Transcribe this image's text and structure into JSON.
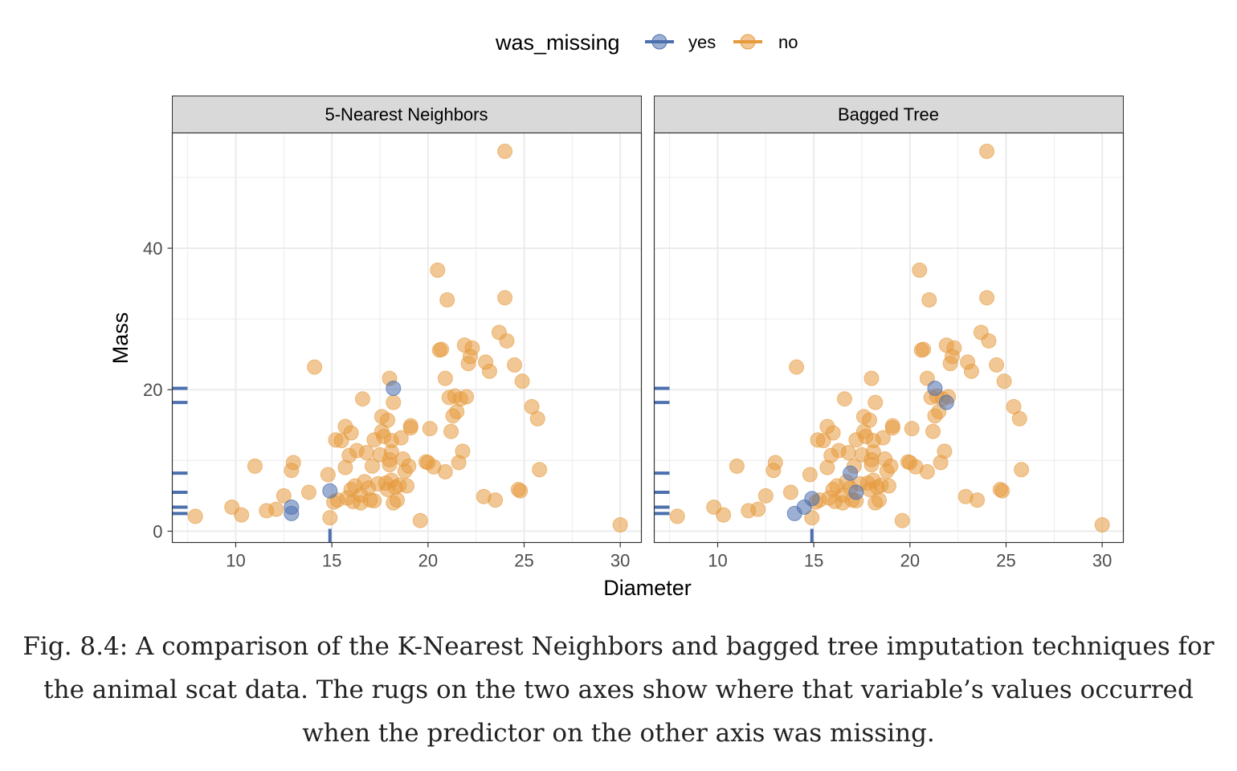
{
  "legend": {
    "title": "was_missing",
    "items": [
      {
        "label": "yes",
        "color": "#4c6fae"
      },
      {
        "label": "no",
        "color": "#e69a3e"
      }
    ],
    "placement": "top"
  },
  "caption": "Fig. 8.4: A comparison of the K-Nearest Neighbors and bagged tree imputation techniques for the animal scat data. The rugs on the two axes show where that variable’s values occurred when the predictor on the other axis was missing.",
  "chart_data": {
    "type": "scatter",
    "xlabel": "Diameter",
    "ylabel": "Mass",
    "xlim": [
      6.7,
      31.1
    ],
    "ylim": [
      -1.6,
      56.3
    ],
    "xticks": [
      10,
      15,
      20,
      25,
      30
    ],
    "yticks": [
      0,
      20,
      40
    ],
    "grid": true,
    "legend_placement": "top",
    "colors": {
      "yes": "#4c6fae",
      "no": "#e69a3e"
    },
    "rug": {
      "y_values": [
        20.2,
        18.2,
        8.2,
        5.5,
        3.4,
        2.5
      ],
      "x_values": [
        14.9
      ]
    },
    "no_points": [
      [
        7.9,
        2.1
      ],
      [
        9.8,
        3.4
      ],
      [
        10.3,
        2.3
      ],
      [
        11.0,
        9.2
      ],
      [
        11.6,
        2.9
      ],
      [
        12.1,
        3.1
      ],
      [
        12.5,
        5.0
      ],
      [
        12.9,
        8.6
      ],
      [
        13.0,
        9.7
      ],
      [
        13.8,
        5.5
      ],
      [
        14.1,
        23.2
      ],
      [
        14.8,
        8.0
      ],
      [
        14.9,
        1.9
      ],
      [
        15.1,
        4.1
      ],
      [
        15.2,
        12.9
      ],
      [
        15.3,
        4.4
      ],
      [
        15.5,
        12.8
      ],
      [
        15.7,
        14.8
      ],
      [
        15.7,
        9.0
      ],
      [
        15.8,
        4.7
      ],
      [
        15.9,
        10.7
      ],
      [
        16.0,
        13.9
      ],
      [
        16.0,
        5.9
      ],
      [
        16.1,
        4.2
      ],
      [
        16.2,
        6.4
      ],
      [
        16.3,
        11.4
      ],
      [
        16.5,
        4.0
      ],
      [
        16.5,
        5.1
      ],
      [
        16.6,
        18.7
      ],
      [
        16.7,
        7.0
      ],
      [
        16.8,
        11.1
      ],
      [
        16.9,
        6.1
      ],
      [
        17.0,
        4.4
      ],
      [
        17.1,
        9.2
      ],
      [
        17.2,
        4.3
      ],
      [
        17.2,
        12.9
      ],
      [
        17.4,
        6.7
      ],
      [
        17.5,
        10.8
      ],
      [
        17.6,
        16.2
      ],
      [
        17.6,
        14.1
      ],
      [
        17.7,
        13.4
      ],
      [
        17.8,
        6.8
      ],
      [
        17.9,
        15.7
      ],
      [
        17.9,
        5.9
      ],
      [
        18.0,
        10.1
      ],
      [
        18.0,
        9.4
      ],
      [
        18.0,
        21.6
      ],
      [
        18.1,
        12.8
      ],
      [
        18.1,
        7.2
      ],
      [
        18.1,
        11.2
      ],
      [
        18.2,
        18.2
      ],
      [
        18.2,
        4.0
      ],
      [
        18.3,
        6.2
      ],
      [
        18.4,
        4.4
      ],
      [
        18.5,
        6.5
      ],
      [
        18.6,
        13.2
      ],
      [
        18.7,
        10.2
      ],
      [
        18.8,
        8.5
      ],
      [
        18.9,
        6.4
      ],
      [
        19.0,
        9.2
      ],
      [
        19.1,
        14.9
      ],
      [
        19.1,
        14.6
      ],
      [
        19.6,
        1.5
      ],
      [
        19.9,
        9.8
      ],
      [
        20.0,
        9.7
      ],
      [
        20.1,
        14.5
      ],
      [
        20.3,
        9.1
      ],
      [
        20.5,
        36.9
      ],
      [
        20.6,
        25.6
      ],
      [
        20.7,
        25.7
      ],
      [
        20.9,
        21.6
      ],
      [
        20.9,
        8.4
      ],
      [
        21.0,
        32.7
      ],
      [
        21.1,
        18.9
      ],
      [
        21.2,
        14.1
      ],
      [
        21.3,
        16.3
      ],
      [
        21.4,
        19.1
      ],
      [
        21.5,
        16.9
      ],
      [
        21.6,
        9.7
      ],
      [
        21.7,
        18.7
      ],
      [
        21.8,
        11.3
      ],
      [
        21.9,
        26.3
      ],
      [
        22.0,
        19.0
      ],
      [
        22.1,
        23.7
      ],
      [
        22.2,
        24.7
      ],
      [
        22.3,
        25.9
      ],
      [
        22.9,
        4.9
      ],
      [
        23.0,
        23.9
      ],
      [
        23.2,
        22.6
      ],
      [
        23.5,
        4.4
      ],
      [
        23.7,
        28.1
      ],
      [
        24.0,
        53.7
      ],
      [
        24.0,
        33.0
      ],
      [
        24.1,
        26.9
      ],
      [
        24.5,
        23.5
      ],
      [
        24.7,
        5.9
      ],
      [
        24.8,
        5.7
      ],
      [
        24.9,
        21.2
      ],
      [
        25.4,
        17.6
      ],
      [
        25.7,
        15.9
      ],
      [
        25.8,
        8.7
      ],
      [
        30.0,
        0.9
      ]
    ],
    "series": [
      {
        "panel": "5-Nearest Neighbors",
        "yes_points": [
          [
            12.9,
            3.4
          ],
          [
            12.9,
            2.5
          ],
          [
            14.9,
            5.7
          ],
          [
            18.2,
            20.2
          ]
        ]
      },
      {
        "panel": "Bagged Tree",
        "yes_points": [
          [
            14.0,
            2.5
          ],
          [
            14.5,
            3.4
          ],
          [
            14.9,
            4.6
          ],
          [
            16.9,
            8.2
          ],
          [
            17.2,
            5.5
          ],
          [
            21.3,
            20.2
          ],
          [
            21.9,
            18.2
          ]
        ]
      }
    ]
  }
}
